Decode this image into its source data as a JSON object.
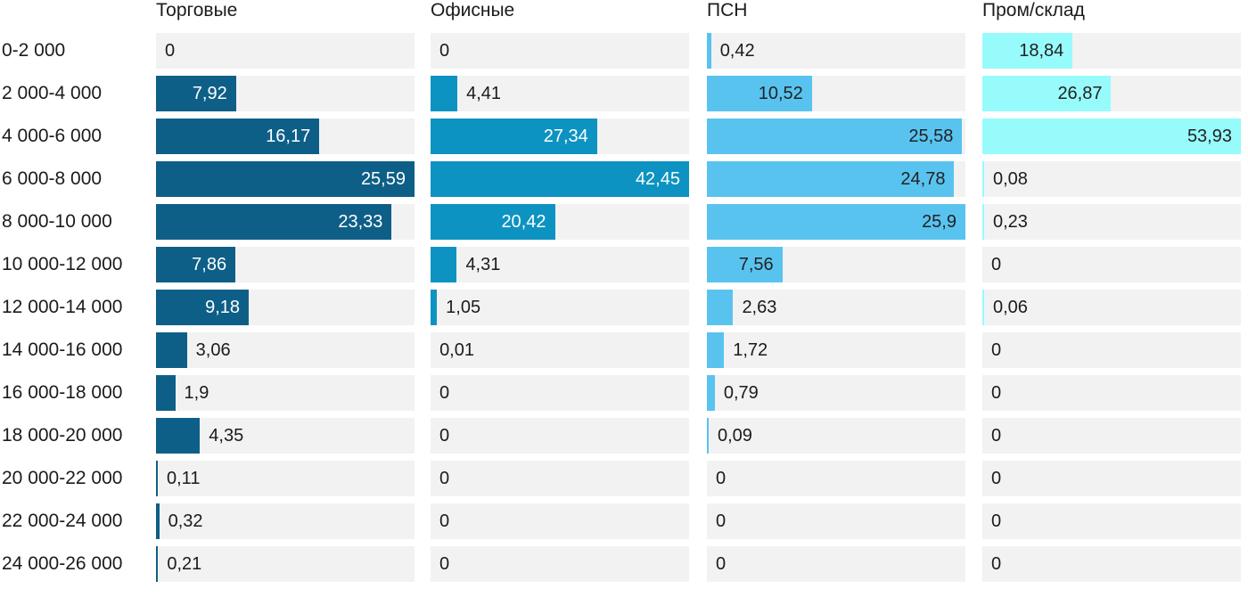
{
  "chart_data": {
    "type": "bar",
    "orientation": "horizontal",
    "scaling": "each series scaled independently to its own max value",
    "value_decimal_separator": ",",
    "track_color": "#f2f2f2",
    "text_color": "#1b1b1b",
    "categories": [
      "0-2 000",
      "2 000-4 000",
      "4 000-6 000",
      "6 000-8 000",
      "8 000-10 000",
      "10 000-12 000",
      "12 000-14 000",
      "14 000-16 000",
      "16 000-18 000",
      "18 000-20 000",
      "20 000-22 000",
      "22 000-24 000",
      "24 000-26 000"
    ],
    "series": [
      {
        "name": "Торговые",
        "color": "#0e5f87",
        "inside_label_color": "#ffffff",
        "values": [
          0,
          7.92,
          16.17,
          25.59,
          23.33,
          7.86,
          9.18,
          3.06,
          1.9,
          4.35,
          0.11,
          0.32,
          0.21
        ],
        "labels": [
          "0",
          "7,92",
          "16,17",
          "25,59",
          "23,33",
          "7,86",
          "9,18",
          "3,06",
          "1,9",
          "4,35",
          "0,11",
          "0,32",
          "0,21"
        ]
      },
      {
        "name": "Офисные",
        "color": "#0d93c2",
        "inside_label_color": "#ffffff",
        "values": [
          0,
          4.41,
          27.34,
          42.45,
          20.42,
          4.31,
          1.05,
          0.01,
          0,
          0,
          0,
          0,
          0
        ],
        "labels": [
          "0",
          "4,41",
          "27,34",
          "42,45",
          "20,42",
          "4,31",
          "1,05",
          "0,01",
          "0",
          "0",
          "0",
          "0",
          "0"
        ]
      },
      {
        "name": "ПСН",
        "color": "#59c3ef",
        "inside_label_color": "#222222",
        "values": [
          0.42,
          10.52,
          25.58,
          24.78,
          25.9,
          7.56,
          2.63,
          1.72,
          0.79,
          0.09,
          0,
          0,
          0
        ],
        "labels": [
          "0,42",
          "10,52",
          "25,58",
          "24,78",
          "25,9",
          "7,56",
          "2,63",
          "1,72",
          "0,79",
          "0,09",
          "0",
          "0",
          "0"
        ]
      },
      {
        "name": "Пром/склад",
        "color": "#97fbfb",
        "inside_label_color": "#222222",
        "values": [
          18.84,
          26.87,
          53.93,
          0.08,
          0.23,
          0,
          0.06,
          0,
          0,
          0,
          0,
          0,
          0
        ],
        "labels": [
          "18,84",
          "26,87",
          "53,93",
          "0,08",
          "0,23",
          "0",
          "0,06",
          "0",
          "0",
          "0",
          "0",
          "0",
          "0"
        ]
      }
    ]
  }
}
